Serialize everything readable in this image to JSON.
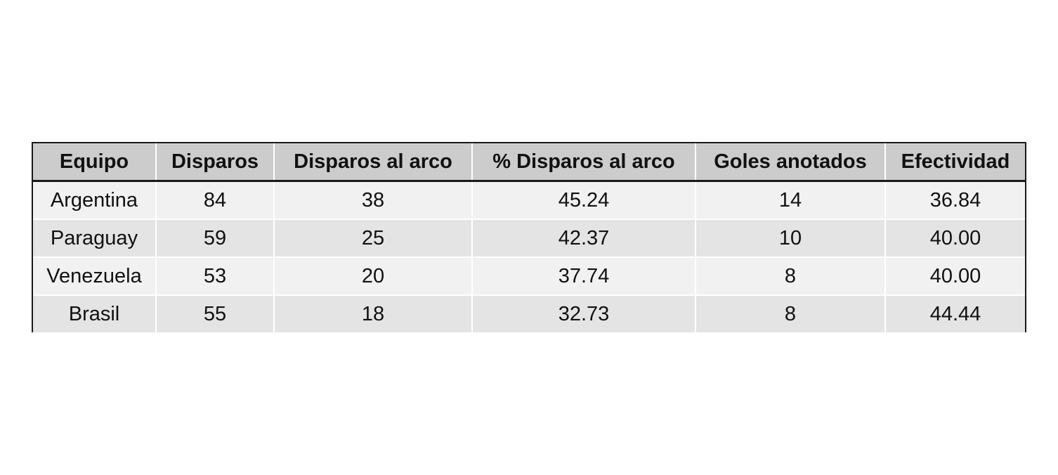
{
  "chart_data": {
    "type": "table",
    "columns": [
      "Equipo",
      "Disparos",
      "Disparos al arco",
      "% Disparos al arco",
      "Goles anotados",
      "Efectividad"
    ],
    "rows": [
      [
        "Argentina",
        "84",
        "38",
        "45.24",
        "14",
        "36.84"
      ],
      [
        "Paraguay",
        "59",
        "25",
        "42.37",
        "10",
        "40.00"
      ],
      [
        "Venezuela",
        "53",
        "20",
        "37.74",
        "8",
        "40.00"
      ],
      [
        "Brasil",
        "55",
        "18",
        "32.73",
        "8",
        "44.44"
      ]
    ],
    "colors": {
      "header_bg": "#cccccc",
      "row_odd_bg": "#f1f1f1",
      "row_even_bg": "#e4e4e4",
      "border": "#1a1a1a"
    }
  }
}
